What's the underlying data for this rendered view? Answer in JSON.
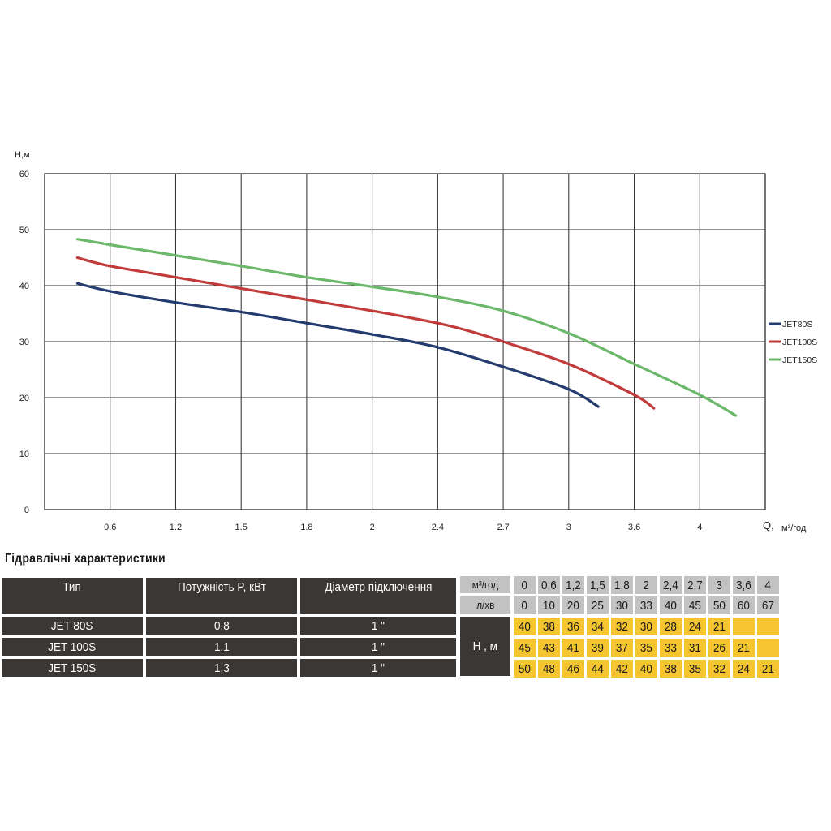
{
  "chart_data": {
    "type": "line",
    "ylabel": "H,м",
    "xlabel": "Q,",
    "xlabel_unit": "м³/год",
    "ylim": [
      0,
      60
    ],
    "yticks": [
      "0",
      "10",
      "20",
      "30",
      "40",
      "50",
      "60"
    ],
    "xticks": [
      "0.6",
      "1.2",
      "1.5",
      "1.8",
      "2",
      "2.4",
      "2.7",
      "3",
      "3.6",
      "4"
    ],
    "grid": true,
    "legend_position": "right",
    "series": [
      {
        "name": "JET80S",
        "color": "#233b6e",
        "points": [
          [
            0.5,
            40.4
          ],
          [
            1,
            39
          ],
          [
            2,
            37
          ],
          [
            3,
            35.3
          ],
          [
            4,
            33.3
          ],
          [
            5,
            31.3
          ],
          [
            6,
            29
          ],
          [
            7,
            25.5
          ],
          [
            8,
            21.5
          ],
          [
            8.45,
            18.4
          ]
        ]
      },
      {
        "name": "JET100S",
        "color": "#c23b3b",
        "points": [
          [
            0.5,
            45
          ],
          [
            1,
            43.5
          ],
          [
            2,
            41.5
          ],
          [
            3,
            39.5
          ],
          [
            4,
            37.5
          ],
          [
            5,
            35.5
          ],
          [
            6,
            33.3
          ],
          [
            6.6,
            31.5
          ],
          [
            7,
            30
          ],
          [
            8,
            26
          ],
          [
            9,
            20.5
          ],
          [
            9.3,
            18.1
          ]
        ]
      },
      {
        "name": "JET150S",
        "color": "#6bb86b",
        "points": [
          [
            0.5,
            48.3
          ],
          [
            1,
            47.3
          ],
          [
            2,
            45.4
          ],
          [
            3,
            43.5
          ],
          [
            4,
            41.5
          ],
          [
            5,
            39.8
          ],
          [
            6,
            38
          ],
          [
            7,
            35.5
          ],
          [
            8,
            31.5
          ],
          [
            9,
            26
          ],
          [
            10,
            20.5
          ],
          [
            10.55,
            16.8
          ]
        ]
      }
    ]
  },
  "table": {
    "title": "Гідравлічні характеристики",
    "headers": {
      "type": "Тип",
      "power": "Потужність  P, кВт",
      "diameter": "Діаметр підключення",
      "unit_m3": "м³/год",
      "unit_lmin": "л/хв",
      "head": "H , м"
    },
    "flow_m3": [
      "0",
      "0,6",
      "1,2",
      "1,5",
      "1,8",
      "2",
      "2,4",
      "2,7",
      "3",
      "3,6",
      "4"
    ],
    "flow_lmin": [
      "0",
      "10",
      "20",
      "25",
      "30",
      "33",
      "40",
      "45",
      "50",
      "60",
      "67"
    ],
    "rows": [
      {
        "model": "JET  80S",
        "power": "0,8",
        "diameter": "1 \"",
        "heads": [
          "40",
          "38",
          "36",
          "34",
          "32",
          "30",
          "28",
          "24",
          "21",
          "",
          ""
        ]
      },
      {
        "model": "JET  100S",
        "power": "1,1",
        "diameter": "1 \"",
        "heads": [
          "45",
          "43",
          "41",
          "39",
          "37",
          "35",
          "33",
          "31",
          "26",
          "21",
          ""
        ]
      },
      {
        "model": "JET  150S",
        "power": "1,3",
        "diameter": "1 \"",
        "heads": [
          "50",
          "48",
          "46",
          "44",
          "42",
          "40",
          "38",
          "35",
          "32",
          "24",
          "21"
        ]
      }
    ],
    "colors": {
      "dark": "#3b3734",
      "gray": "#c2c2c2",
      "yellow": "#f4c52e"
    }
  }
}
